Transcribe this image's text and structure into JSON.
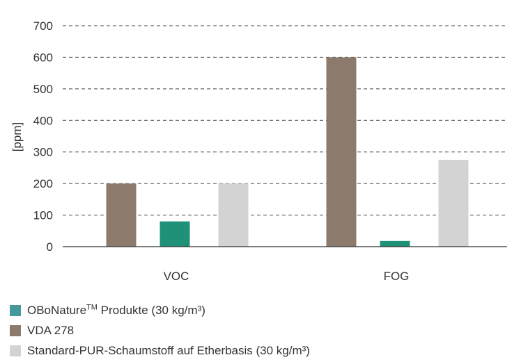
{
  "chart_data": {
    "type": "bar",
    "ylabel": "[ppm]",
    "ylim": [
      0,
      700
    ],
    "yticks": [
      0,
      100,
      200,
      300,
      400,
      500,
      600,
      700
    ],
    "grid": "horizontal-dashed",
    "legend_position": "bottom-left",
    "categories": [
      "VOC",
      "FOG"
    ],
    "series": [
      {
        "name": "VDA 278",
        "color": "#8c7b6c",
        "values": [
          200,
          600
        ]
      },
      {
        "name": "OBoNature™ Produkte (30 kg/m³)",
        "color": "#1e9178",
        "values": [
          80,
          18
        ]
      },
      {
        "name": "Standard-PUR-Schaumstoff auf Etherbasis (30 kg/m³)",
        "color": "#d3d3d3",
        "values": [
          200,
          275
        ]
      }
    ]
  },
  "legend": [
    {
      "prefix": "OBoNature",
      "sup": "TM",
      "suffix": " Produkte (30 kg/m³)",
      "color": "#46999a"
    },
    {
      "prefix": "VDA 278",
      "sup": "",
      "suffix": "",
      "color": "#8c7b6c"
    },
    {
      "prefix": "Standard-PUR-Schaumstoff auf Etherbasis (30 kg/m³)",
      "sup": "",
      "suffix": "",
      "color": "#d3d3d3"
    }
  ]
}
